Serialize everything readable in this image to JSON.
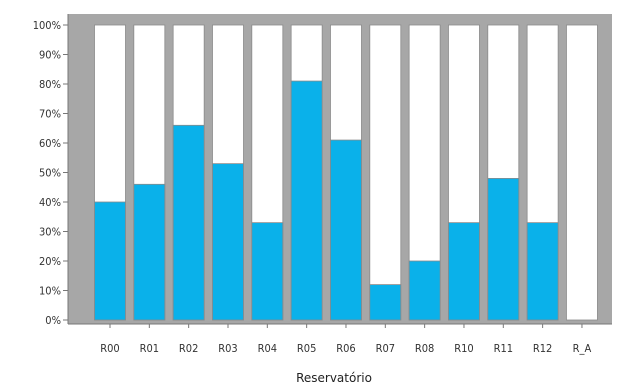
{
  "chart_data": {
    "type": "bar",
    "stacked_percent": true,
    "title": "",
    "xlabel": "Reservatório",
    "ylabel": "",
    "ylim": [
      0,
      100
    ],
    "yticks": [
      "0%",
      "10%",
      "20%",
      "30%",
      "40%",
      "50%",
      "60%",
      "70%",
      "80%",
      "90%",
      "100%"
    ],
    "grid": false,
    "legend": "none",
    "categories": [
      "R00",
      "R01",
      "R02",
      "R03",
      "R04",
      "R05",
      "R06",
      "R07",
      "R08",
      "R10",
      "R11",
      "R12",
      "R_A"
    ],
    "values": [
      40,
      46,
      66,
      53,
      33,
      81,
      61,
      12,
      20,
      33,
      48,
      33,
      0
    ],
    "colors": {
      "fill": "#0ab1ea",
      "remainder": "#ffffff",
      "plot_background": "#a7a7a7",
      "bar_outline": "#8a8a8a"
    }
  }
}
